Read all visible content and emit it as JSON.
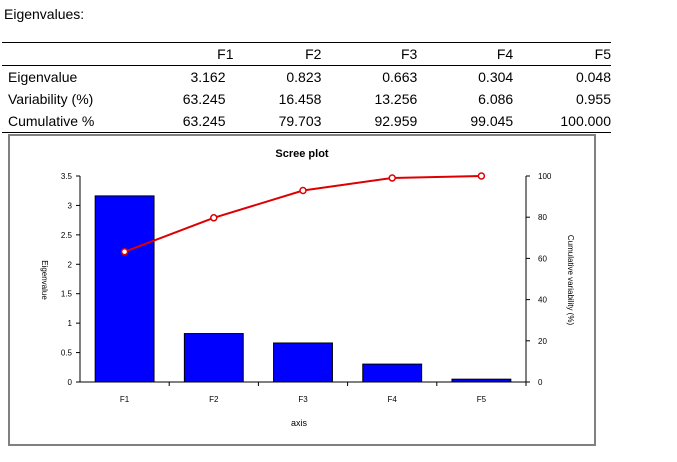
{
  "heading": "Eigenvalues:",
  "table": {
    "columns": [
      "F1",
      "F2",
      "F3",
      "F4",
      "F5"
    ],
    "rows": [
      {
        "label": "Eigenvalue",
        "values": [
          "3.162",
          "0.823",
          "0.663",
          "0.304",
          "0.048"
        ]
      },
      {
        "label": "Variability (%)",
        "values": [
          "63.245",
          "16.458",
          "13.256",
          "6.086",
          "0.955"
        ]
      },
      {
        "label": "Cumulative %",
        "values": [
          "63.245",
          "79.703",
          "92.959",
          "99.045",
          "100.000"
        ]
      }
    ]
  },
  "chart_data": {
    "type": "bar",
    "title": "Scree plot",
    "xlabel": "axis",
    "ylabel": "Eigenvalue",
    "y2label": "Cumulative variability (%)",
    "categories": [
      "F1",
      "F2",
      "F3",
      "F4",
      "F5"
    ],
    "series": [
      {
        "name": "Eigenvalue",
        "type": "bar",
        "axis": "left",
        "values": [
          3.162,
          0.823,
          0.663,
          0.304,
          0.048
        ]
      },
      {
        "name": "Cumulative %",
        "type": "line",
        "axis": "right",
        "values": [
          63.245,
          79.703,
          92.959,
          99.045,
          100.0
        ]
      }
    ],
    "ylim": [
      0,
      3.5
    ],
    "y2lim": [
      0,
      100
    ],
    "yticks": [
      "0",
      "0.5",
      "1",
      "1.5",
      "2",
      "2.5",
      "3",
      "3.5"
    ],
    "y2ticks": [
      "0",
      "20",
      "40",
      "60",
      "80",
      "100"
    ],
    "grid": false,
    "colors": {
      "bar": "#0000ff",
      "bar_edge": "#000000",
      "line": "#dd0000",
      "frame": "#808080"
    }
  }
}
